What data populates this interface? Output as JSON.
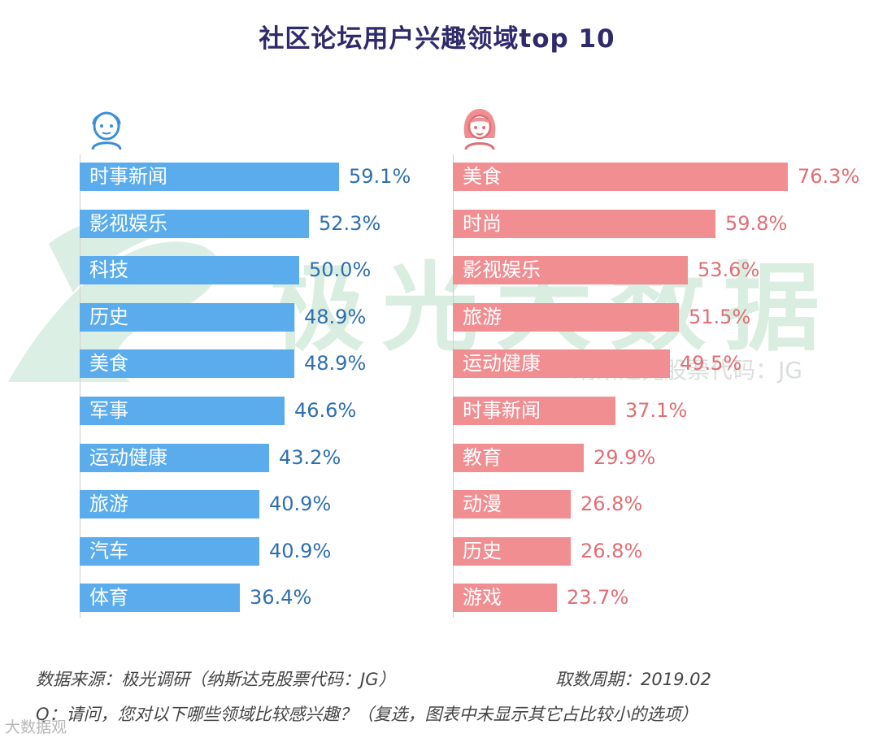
{
  "title": "社区论坛用户兴趣领域top 10",
  "watermark": {
    "brand": "极光大数据",
    "ticker": "纳斯达克股票代码：JG"
  },
  "chart_data": [
    {
      "type": "bar",
      "orientation": "horizontal",
      "series_name": "male",
      "icon": "male-user-icon",
      "color": "#5aacec",
      "categories": [
        "时事新闻",
        "影视娱乐",
        "科技",
        "历史",
        "美食",
        "军事",
        "运动健康",
        "旅游",
        "汽车",
        "体育"
      ],
      "values": [
        59.1,
        52.3,
        50.0,
        48.9,
        48.9,
        46.6,
        43.2,
        40.9,
        40.9,
        36.4
      ],
      "labels": [
        "59.1%",
        "52.3%",
        "50.0%",
        "48.9%",
        "48.9%",
        "46.6%",
        "43.2%",
        "40.9%",
        "40.9%",
        "36.4%"
      ],
      "unit": "%"
    },
    {
      "type": "bar",
      "orientation": "horizontal",
      "series_name": "female",
      "icon": "female-user-icon",
      "color": "#f08e92",
      "categories": [
        "美食",
        "时尚",
        "影视娱乐",
        "旅游",
        "运动健康",
        "时事新闻",
        "教育",
        "动漫",
        "历史",
        "游戏"
      ],
      "values": [
        76.3,
        59.8,
        53.6,
        51.5,
        49.5,
        37.1,
        29.9,
        26.8,
        26.8,
        23.7
      ],
      "labels": [
        "76.3%",
        "59.8%",
        "53.6%",
        "51.5%",
        "49.5%",
        "37.1%",
        "29.9%",
        "26.8%",
        "26.8%",
        "23.7%"
      ],
      "unit": "%"
    }
  ],
  "footer": {
    "source": "数据来源：极光调研（纳斯达克股票代码：JG）",
    "period": "取数周期：2019.02",
    "question": "Q：请问，您对以下哪些领域比较感兴趣？（复选，图表中未显示其它占比较小的选项）"
  },
  "corner_logo": "大数据观"
}
